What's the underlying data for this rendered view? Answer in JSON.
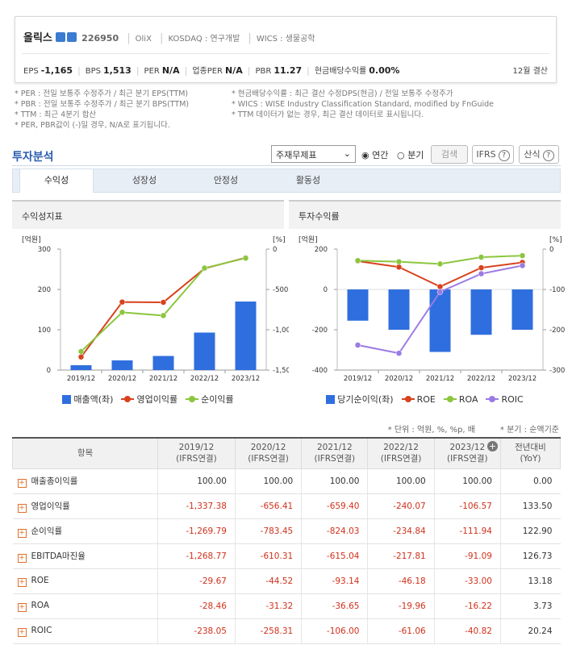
{
  "header": {
    "name": "올릭스",
    "code": "226950",
    "eng": "OliX",
    "market": "KOSDAQ : 연구개발",
    "wics": "WICS : 생물공학",
    "metrics": [
      {
        "label": "EPS",
        "value": "-1,165"
      },
      {
        "label": "BPS",
        "value": "1,513"
      },
      {
        "label": "PER",
        "value": "N/A"
      },
      {
        "label": "업종PER",
        "value": "N/A"
      },
      {
        "label": "PBR",
        "value": "11.27"
      },
      {
        "label": "현금배당수익률",
        "value": "0.00%"
      }
    ],
    "fiscal": "12월 결산"
  },
  "notes": {
    "left": [
      "* PER : 전일 보통주 수정주가 / 최근 분기 EPS(TTM)",
      "* PBR : 전일 보통주 수정주가 / 최근 분기 BPS(TTM)",
      "* TTM : 최근 4분기 합산",
      "* PER, PBR값이 (-)일 경우, N/A로 표기됩니다."
    ],
    "right": [
      "* 현금배당수익률 : 최근 결산 수정DPS(현금) / 전일 보통주 수정주가",
      "* WICS : WISE Industry Classification Standard, modified by FnGuide",
      "* TTM 데이터가 없는 경우, 최근 결산 데이터로 표시됩니다."
    ]
  },
  "section": {
    "title": "투자분석",
    "select": "주재무제표",
    "radios": [
      "연간",
      "분기"
    ],
    "search": "검색",
    "ifrs": "IFRS",
    "formula": "산식"
  },
  "tabs": [
    "수익성",
    "성장성",
    "안정성",
    "활동성"
  ],
  "chart_data": [
    {
      "type": "combo",
      "title": "수익성지표",
      "ylabel": "[억원]",
      "y2label": "[%]",
      "categories": [
        "2019/12",
        "2020/12",
        "2021/12",
        "2022/12",
        "2023/12"
      ],
      "ylim": [
        0,
        300
      ],
      "yticks": [
        0,
        100,
        200,
        300
      ],
      "y2lim": [
        -1500,
        0
      ],
      "y2ticks": [
        0,
        -500,
        {
          "value": -1000,
          "label": "-1,000"
        },
        {
          "value": -1500,
          "label": "-1,500"
        }
      ],
      "series": [
        {
          "name": "매출액(좌)",
          "type": "bar",
          "color": "#2f6ede",
          "values": [
            12,
            24,
            35,
            93,
            170
          ]
        },
        {
          "name": "영업이익률",
          "type": "line",
          "axis": "y2",
          "color": "#d8421e",
          "values": [
            -1337.38,
            -656.41,
            -659.4,
            -240.07,
            -106.57
          ]
        },
        {
          "name": "순이익률",
          "type": "line",
          "axis": "y2",
          "color": "#8cc63f",
          "values": [
            -1269.79,
            -783.45,
            -824.03,
            -234.84,
            -111.94
          ]
        }
      ]
    },
    {
      "type": "combo",
      "title": "투자수익률",
      "ylabel": "[억원]",
      "y2label": "[%]",
      "categories": [
        "2019/12",
        "2020/12",
        "2021/12",
        "2022/12",
        "2023/12"
      ],
      "ylim": [
        -400,
        200
      ],
      "yticks": [
        200,
        0,
        -200,
        -400
      ],
      "y2lim": [
        -300,
        0
      ],
      "y2ticks": [
        0,
        -100,
        -200,
        -300
      ],
      "series": [
        {
          "name": "당기순이익(좌)",
          "type": "bar",
          "color": "#2f6ede",
          "values": [
            -155,
            -200,
            -310,
            -225,
            -200
          ]
        },
        {
          "name": "ROE",
          "type": "line",
          "axis": "y2",
          "color": "#d8421e",
          "values": [
            -29.67,
            -44.52,
            -93.14,
            -46.18,
            -33.0
          ]
        },
        {
          "name": "ROA",
          "type": "line",
          "axis": "y2",
          "color": "#8cc63f",
          "values": [
            -28.46,
            -31.32,
            -36.65,
            -19.96,
            -16.22
          ]
        },
        {
          "name": "ROIC",
          "type": "line",
          "axis": "y2",
          "color": "#9b7be3",
          "values": [
            -238.05,
            -258.31,
            -106.0,
            -61.06,
            -40.82
          ]
        }
      ]
    }
  ],
  "units": "* 단위 : 억원, %, %p, 배",
  "quarter_note": "* 분기 : 순액기준",
  "table": {
    "item_header": "항목",
    "columns": [
      {
        "top": "2019/12",
        "bottom": "(IFRS연결)"
      },
      {
        "top": "2020/12",
        "bottom": "(IFRS연결)"
      },
      {
        "top": "2021/12",
        "bottom": "(IFRS연결)"
      },
      {
        "top": "2022/12",
        "bottom": "(IFRS연결)"
      },
      {
        "top": "2023/12",
        "bottom": "(IFRS연결)"
      },
      {
        "top": "전년대비",
        "bottom": "(YoY)"
      }
    ],
    "rows": [
      {
        "label": "매출총이익률",
        "values": [
          "100.00",
          "100.00",
          "100.00",
          "100.00",
          "100.00",
          "0.00"
        ]
      },
      {
        "label": "영업이익률",
        "values": [
          "-1,337.38",
          "-656.41",
          "-659.40",
          "-240.07",
          "-106.57",
          "133.50"
        ]
      },
      {
        "label": "순이익률",
        "values": [
          "-1,269.79",
          "-783.45",
          "-824.03",
          "-234.84",
          "-111.94",
          "122.90"
        ]
      },
      {
        "label": "EBITDA마진율",
        "values": [
          "-1,268.77",
          "-610.31",
          "-615.04",
          "-217.81",
          "-91.09",
          "126.73"
        ]
      },
      {
        "label": "ROE",
        "values": [
          "-29.67",
          "-44.52",
          "-93.14",
          "-46.18",
          "-33.00",
          "13.18"
        ]
      },
      {
        "label": "ROA",
        "values": [
          "-28.46",
          "-31.32",
          "-36.65",
          "-19.96",
          "-16.22",
          "3.73"
        ]
      },
      {
        "label": "ROIC",
        "values": [
          "-238.05",
          "-258.31",
          "-106.00",
          "-61.06",
          "-40.82",
          "20.24"
        ]
      }
    ]
  }
}
